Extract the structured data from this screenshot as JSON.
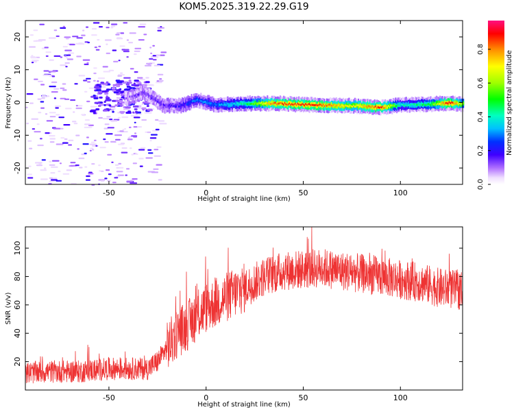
{
  "title": "KOM5.2025.319.22.29.G19",
  "colorbar": {
    "label": "Normalized spectral amplitude",
    "ticks": [
      "0.0",
      "0.2",
      "0.4",
      "0.6",
      "0.8"
    ],
    "tick_values": [
      0.0,
      0.2,
      0.4,
      0.6,
      0.8
    ],
    "range": [
      0.0,
      0.97
    ]
  },
  "chart_data": [
    {
      "type": "heatmap",
      "xlabel": "Height of straight line (km)",
      "ylabel": "Frequency (Hz)",
      "xlim": [
        -93,
        132
      ],
      "ylim": [
        -25,
        25
      ],
      "xticks": [
        "-50",
        "0",
        "50",
        "100"
      ],
      "xtick_values": [
        -50,
        0,
        50,
        100
      ],
      "yticks": [
        "20",
        "10",
        "0",
        "-10",
        "-20"
      ],
      "ytick_values": [
        20,
        10,
        0,
        -10,
        -20
      ],
      "ridge": {
        "description_points": [
          {
            "x": -40,
            "y": 1.5,
            "amp": 0.1
          },
          {
            "x": -32,
            "y": 3.0,
            "amp": 0.15
          },
          {
            "x": -22,
            "y": -1.0,
            "amp": 0.15
          },
          {
            "x": -13,
            "y": -1.0,
            "amp": 0.2
          },
          {
            "x": -5,
            "y": 0.8,
            "amp": 0.3
          },
          {
            "x": 5,
            "y": -0.8,
            "amp": 0.3
          },
          {
            "x": 20,
            "y": -0.3,
            "amp": 0.45
          },
          {
            "x": 35,
            "y": -0.3,
            "amp": 0.85
          },
          {
            "x": 55,
            "y": -0.8,
            "amp": 0.9
          },
          {
            "x": 75,
            "y": -1.0,
            "amp": 0.7
          },
          {
            "x": 90,
            "y": -1.5,
            "amp": 0.9
          },
          {
            "x": 100,
            "y": -0.8,
            "amp": 0.4
          },
          {
            "x": 115,
            "y": -0.5,
            "amp": 0.5
          },
          {
            "x": 125,
            "y": -0.2,
            "amp": 0.95
          },
          {
            "x": 132,
            "y": -0.5,
            "amp": 0.6
          }
        ]
      }
    },
    {
      "type": "line",
      "xlabel": "Height of straight line (km)",
      "ylabel": "SNR (v/v)",
      "xlim": [
        -93,
        132
      ],
      "ylim": [
        0,
        115
      ],
      "xticks": [
        "-50",
        "0",
        "50",
        "100"
      ],
      "xtick_values": [
        -50,
        0,
        50,
        100
      ],
      "yticks": [
        "20",
        "40",
        "60",
        "80",
        "100"
      ],
      "ytick_values": [
        20,
        40,
        60,
        80,
        100
      ],
      "color": "#ee3333",
      "series": [
        {
          "trend_x": [
            -93,
            -80,
            -65,
            -50,
            -40,
            -30,
            -25,
            -20,
            -15,
            -10,
            -5,
            0,
            10,
            20,
            30,
            40,
            50,
            60,
            70,
            80,
            90,
            100,
            110,
            120,
            132
          ],
          "trend_y": [
            12,
            13,
            13,
            15,
            15,
            15,
            20,
            30,
            40,
            45,
            52,
            58,
            65,
            72,
            80,
            84,
            85,
            86,
            84,
            82,
            80,
            78,
            76,
            72,
            70
          ]
        }
      ]
    }
  ]
}
